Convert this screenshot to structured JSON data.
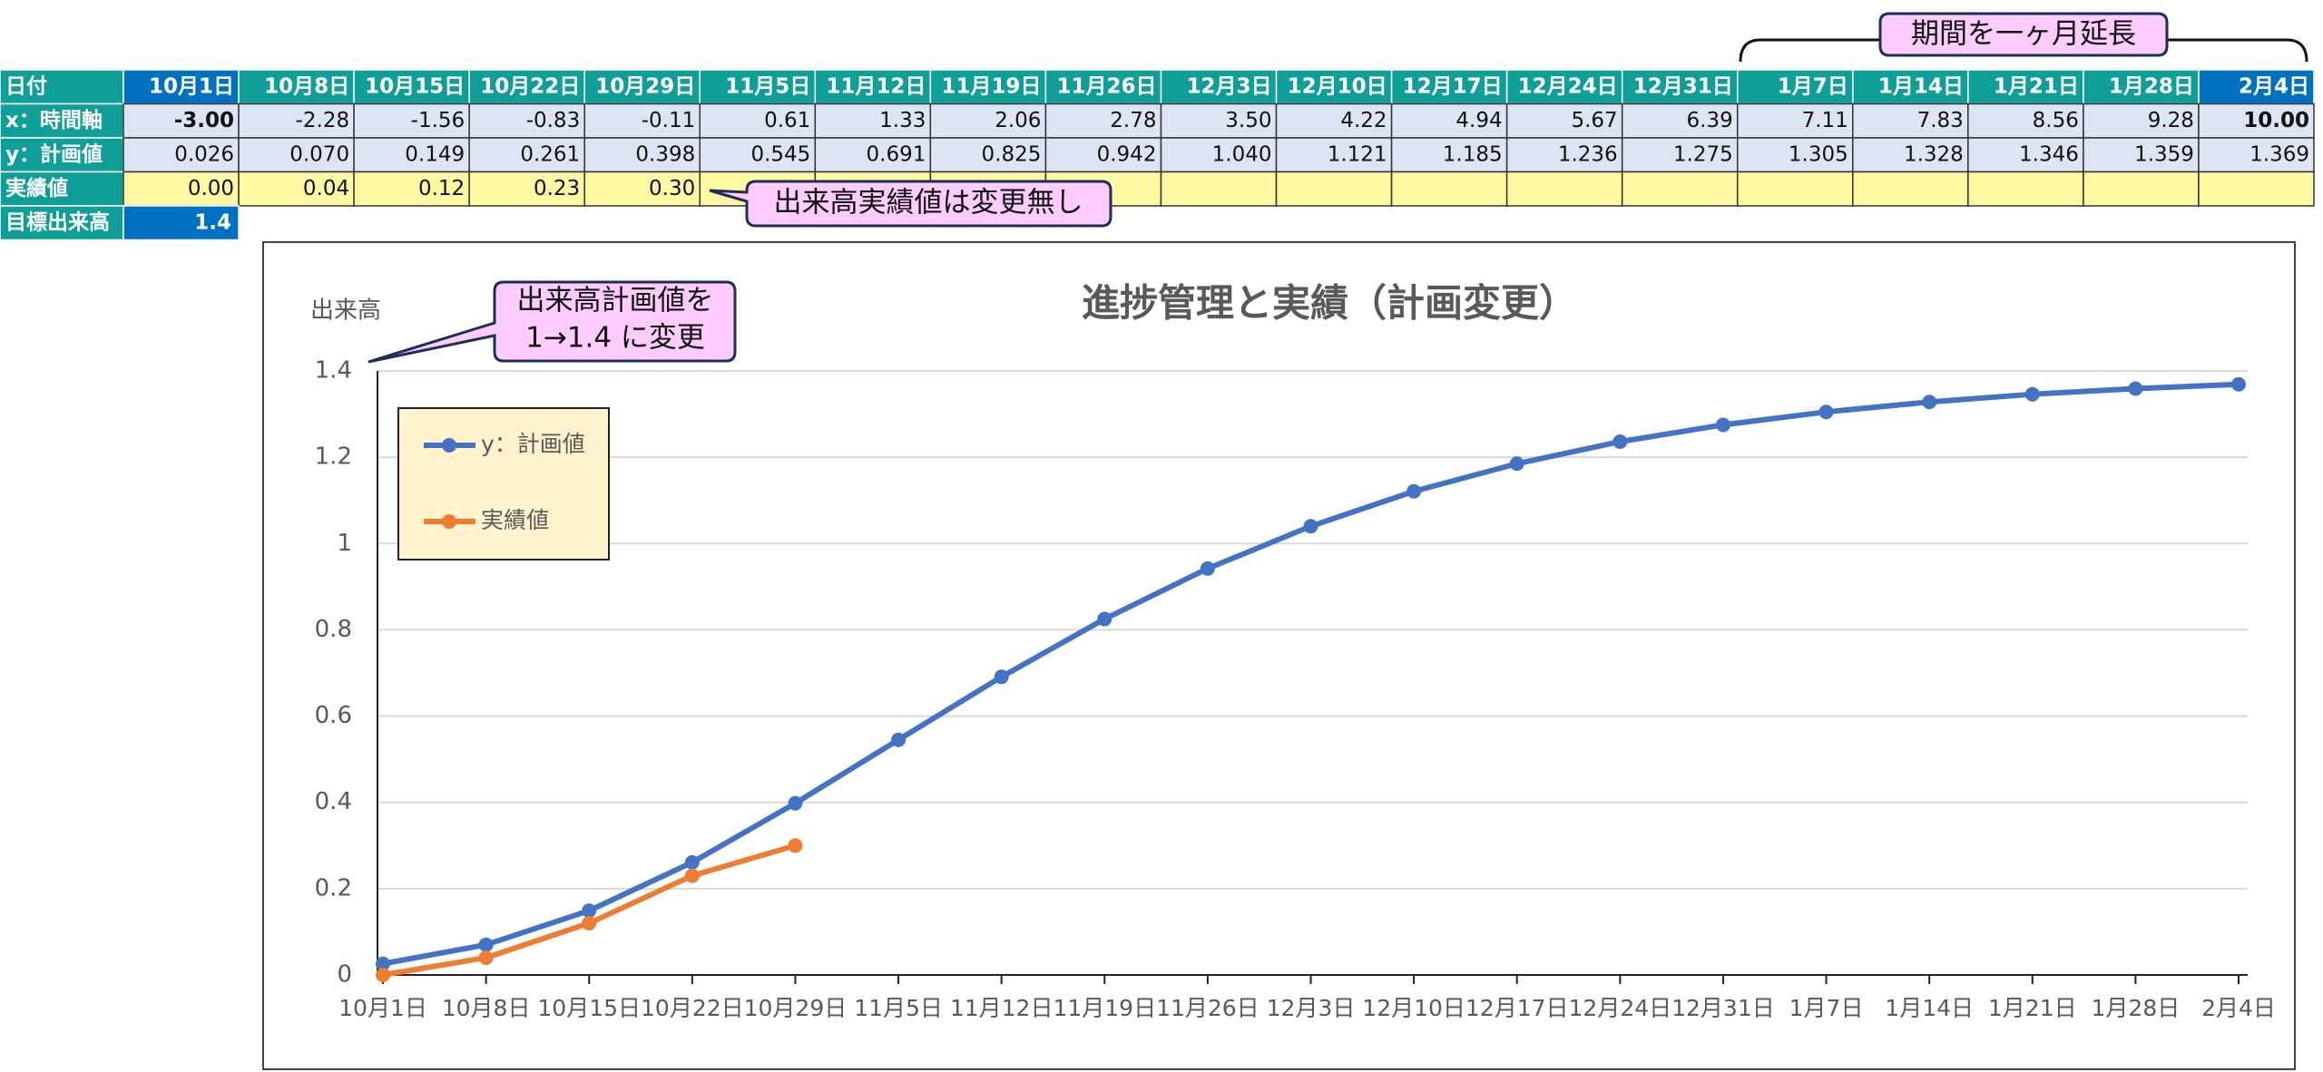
{
  "table": {
    "header_label": "日付",
    "columns": [
      "10月1日",
      "10月8日",
      "10月15日",
      "10月22日",
      "10月29日",
      "11月5日",
      "11月12日",
      "11月19日",
      "11月26日",
      "12月3日",
      "12月10日",
      "12月17日",
      "12月24日",
      "12月31日",
      "1月7日",
      "1月14日",
      "1月21日",
      "1月28日",
      "2月4日"
    ],
    "rows": [
      {
        "label": "x：時間軸",
        "cells": [
          "-3.00",
          "-2.28",
          "-1.56",
          "-0.83",
          "-0.11",
          "0.61",
          "1.33",
          "2.06",
          "2.78",
          "3.50",
          "4.22",
          "4.94",
          "5.67",
          "6.39",
          "7.11",
          "7.83",
          "8.56",
          "9.28",
          "10.00"
        ]
      },
      {
        "label": "y：計画値",
        "cells": [
          "0.026",
          "0.070",
          "0.149",
          "0.261",
          "0.398",
          "0.545",
          "0.691",
          "0.825",
          "0.942",
          "1.040",
          "1.121",
          "1.185",
          "1.236",
          "1.275",
          "1.305",
          "1.328",
          "1.346",
          "1.359",
          "1.369"
        ]
      },
      {
        "label": "実績値",
        "cells": [
          "0.00",
          "0.04",
          "0.12",
          "0.23",
          "0.30"
        ]
      }
    ],
    "target_label": "目標出来高",
    "target_value": "1.4"
  },
  "annotations": [
    "出来高計画値を",
    "1→1.4 に変更",
    "出来高実績値は変更無し",
    "期間を一ヶ月延長"
  ],
  "chart_data": {
    "type": "line",
    "title": "進捗管理と実績（計画変更）",
    "y_label": "出来高",
    "categories": [
      "10月1日",
      "10月8日",
      "10月15日",
      "10月22日",
      "10月29日",
      "11月5日",
      "11月12日",
      "11月19日",
      "11月26日",
      "12月3日",
      "12月10日",
      "12月17日",
      "12月24日",
      "12月31日",
      "1月7日",
      "1月14日",
      "1月21日",
      "1月28日",
      "2月4日"
    ],
    "series": [
      {
        "name": "y：計画値",
        "color": "#4472c4",
        "values": [
          0.026,
          0.07,
          0.149,
          0.261,
          0.398,
          0.545,
          0.691,
          0.825,
          0.942,
          1.04,
          1.121,
          1.185,
          1.236,
          1.275,
          1.305,
          1.328,
          1.346,
          1.359,
          1.369
        ]
      },
      {
        "name": "実績値",
        "color": "#ed7d31",
        "values": [
          0,
          0.04,
          0.12,
          0.23,
          0.3,
          null,
          null,
          null,
          null,
          null,
          null,
          null,
          null,
          null,
          null,
          null,
          null,
          null,
          null
        ]
      }
    ],
    "ylim": [
      0,
      1.4
    ],
    "yticks": [
      0,
      0.2,
      0.4,
      0.6,
      0.8,
      1,
      1.2,
      1.4
    ],
    "grid": true,
    "legend": "top-left"
  }
}
